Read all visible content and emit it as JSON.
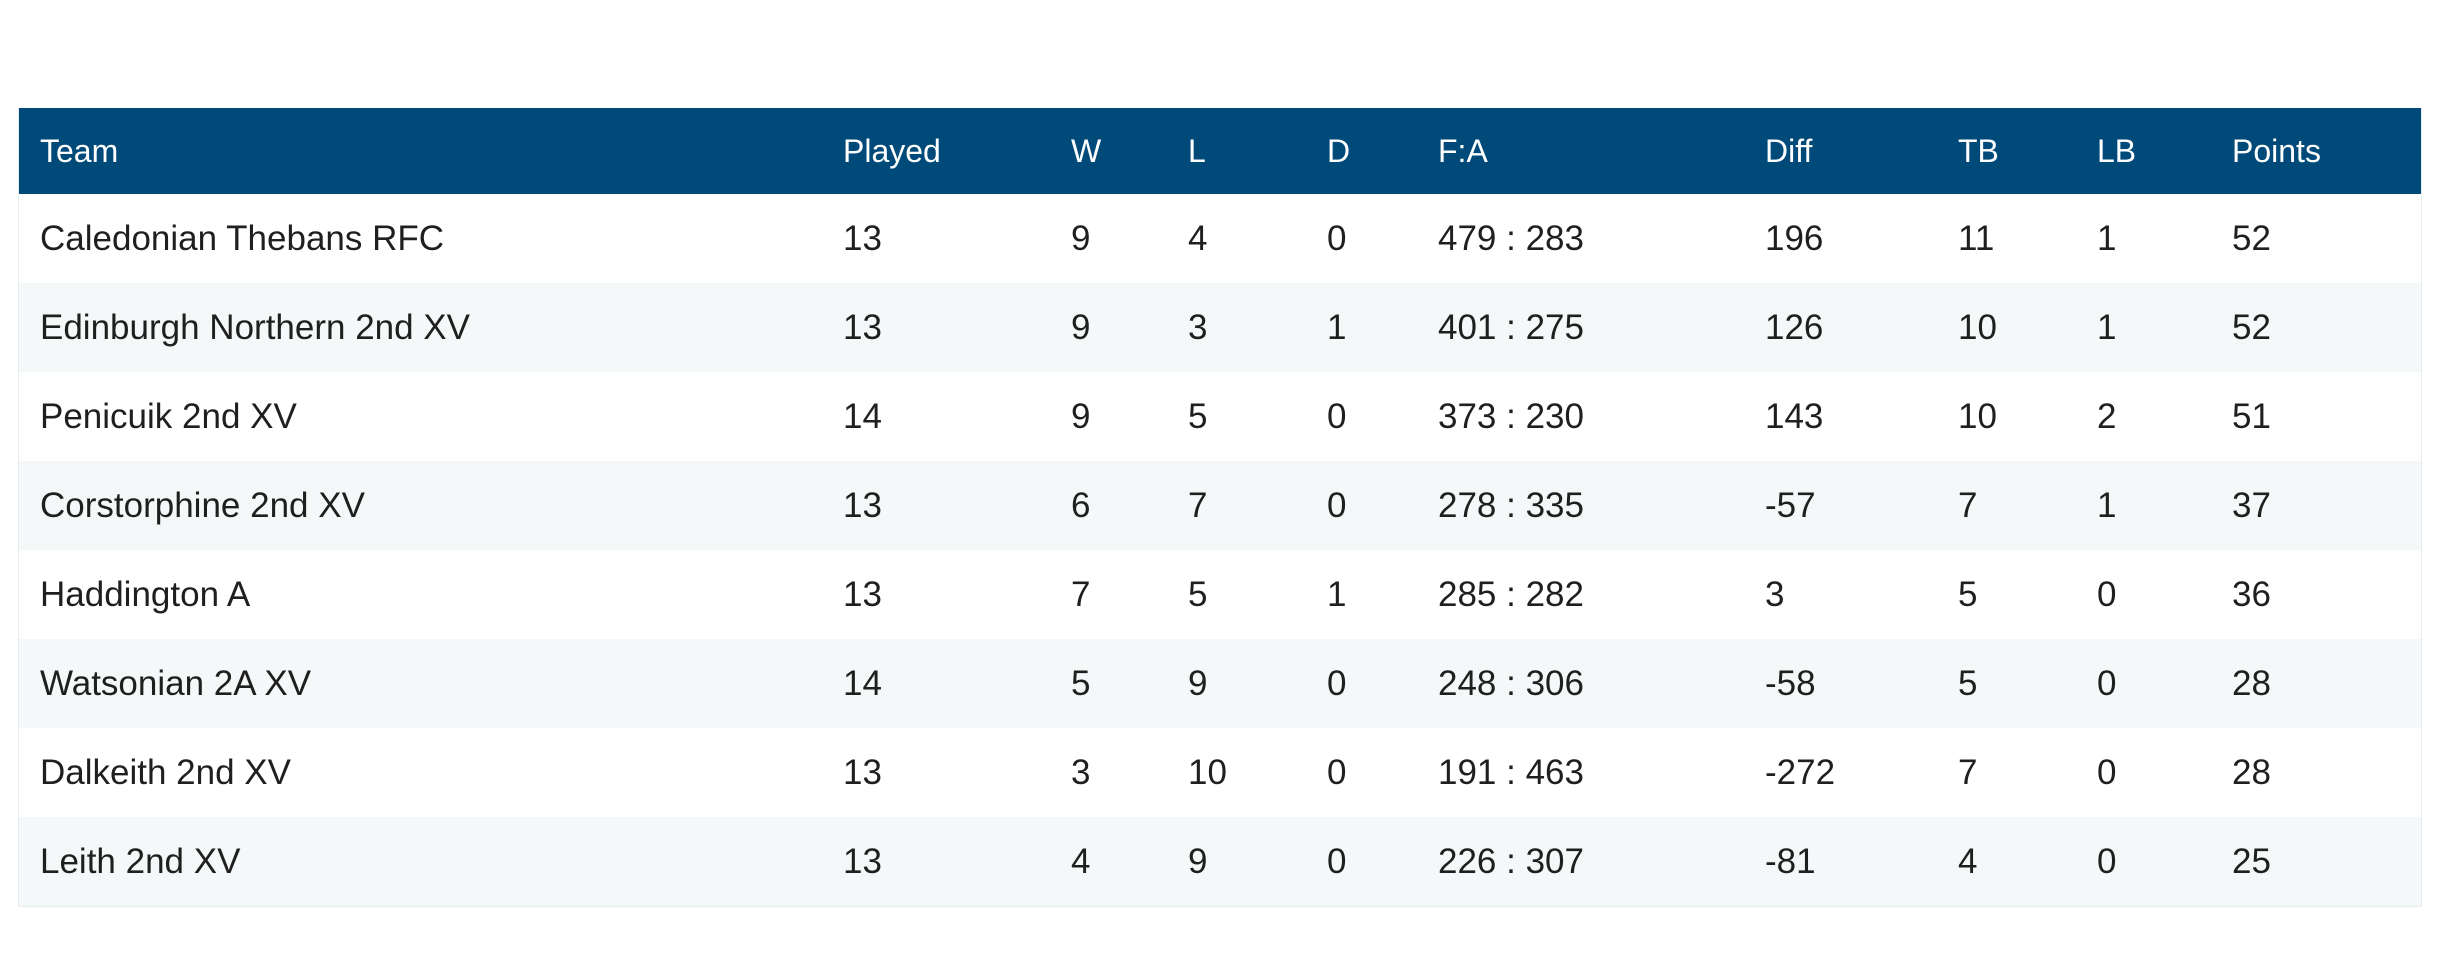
{
  "table": {
    "headers": [
      "Team",
      "Played",
      "W",
      "L",
      "D",
      "F:A",
      "Diff",
      "TB",
      "LB",
      "Points"
    ],
    "rows": [
      [
        "Caledonian Thebans RFC",
        "13",
        "9",
        "4",
        "0",
        "479 : 283",
        "196",
        "11",
        "1",
        "52"
      ],
      [
        "Edinburgh Northern 2nd XV",
        "13",
        "9",
        "3",
        "1",
        "401 : 275",
        "126",
        "10",
        "1",
        "52"
      ],
      [
        "Penicuik 2nd XV",
        "14",
        "9",
        "5",
        "0",
        "373 : 230",
        "143",
        "10",
        "2",
        "51"
      ],
      [
        "Corstorphine 2nd XV",
        "13",
        "6",
        "7",
        "0",
        "278 : 335",
        "-57",
        "7",
        "1",
        "37"
      ],
      [
        "Haddington A",
        "13",
        "7",
        "5",
        "1",
        "285 : 282",
        "3",
        "5",
        "0",
        "36"
      ],
      [
        "Watsonian 2A XV",
        "14",
        "5",
        "9",
        "0",
        "248 : 306",
        "-58",
        "5",
        "0",
        "28"
      ],
      [
        "Dalkeith 2nd XV",
        "13",
        "3",
        "10",
        "0",
        "191 : 463",
        "-272",
        "7",
        "0",
        "28"
      ],
      [
        "Leith 2nd XV",
        "13",
        "4",
        "9",
        "0",
        "226 : 307",
        "-81",
        "4",
        "0",
        "25"
      ]
    ]
  },
  "colors": {
    "header_bg": "#004a7a",
    "header_text": "#ffffff",
    "row_alt_bg": "#f4f8f9",
    "text": "#1f1f1f"
  }
}
